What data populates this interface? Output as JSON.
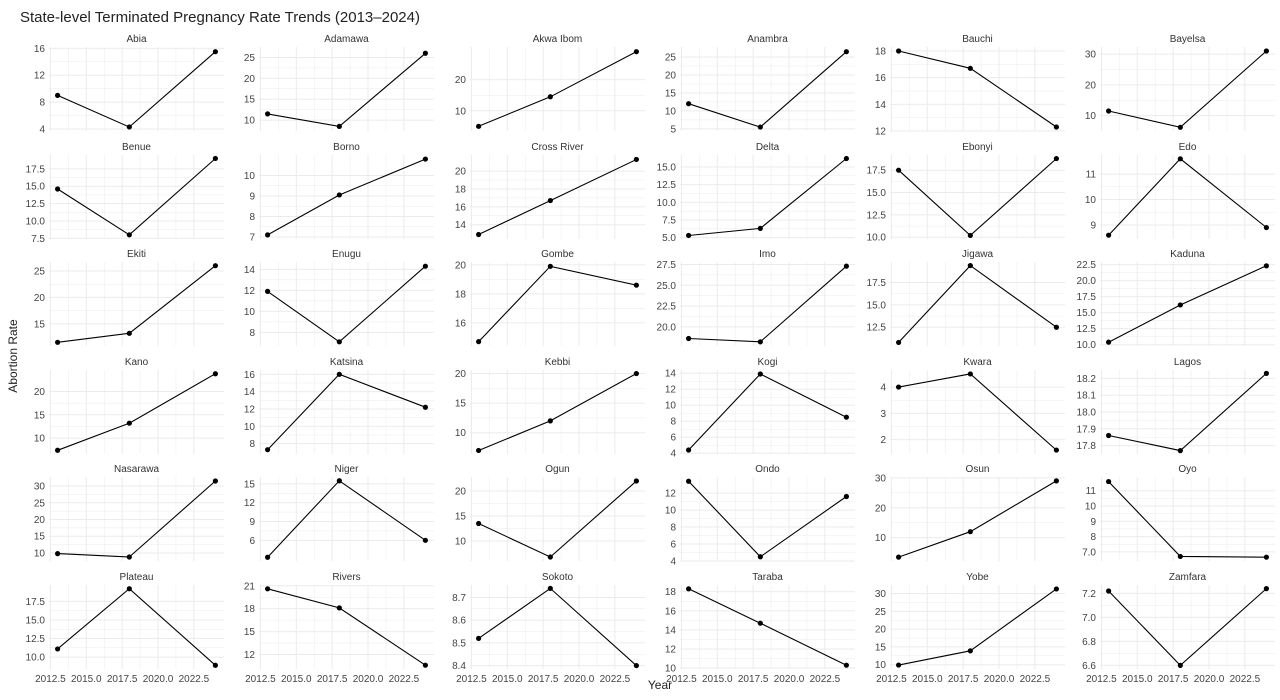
{
  "figure": {
    "title": "State-level Terminated Pregnancy Rate Trends (2013–2024)",
    "xlabel": "Year",
    "ylabel": "Abortion Rate",
    "background": "#ffffff",
    "grid_color": "#ebebeb",
    "line_color": "#000000",
    "point_color": "#000000"
  },
  "chart_data": {
    "type": "line",
    "layout": "facet_wrap",
    "grid": true,
    "x": [
      2013,
      2018,
      2024
    ],
    "xlim": [
      2012.4,
      2024.6
    ],
    "x_ticks": [
      2012.5,
      2015.0,
      2017.5,
      2020.0,
      2022.5
    ],
    "x_tick_labels": [
      "2012.5",
      "2015.0",
      "2017.5",
      "2020.0",
      "2022.5"
    ],
    "panels": [
      {
        "name": "Abia",
        "values": [
          9.0,
          4.3,
          15.5
        ],
        "ylim": [
          3.7,
          16.2
        ],
        "yticks": [
          4,
          8,
          12,
          16
        ],
        "ytick_labels": [
          "4",
          "8",
          "12",
          "16"
        ]
      },
      {
        "name": "Adamawa",
        "values": [
          11.5,
          8.5,
          26.0
        ],
        "ylim": [
          7.4,
          27.5
        ],
        "yticks": [
          10,
          15,
          20,
          25
        ],
        "ytick_labels": [
          "10",
          "15",
          "20",
          "25"
        ]
      },
      {
        "name": "Akwa Ibom",
        "values": [
          5.0,
          14.5,
          29.0
        ],
        "ylim": [
          3.5,
          30.5
        ],
        "yticks": [
          10,
          20
        ],
        "ytick_labels": [
          "10",
          "20"
        ]
      },
      {
        "name": "Anambra",
        "values": [
          12.0,
          5.5,
          26.5
        ],
        "ylim": [
          4.4,
          27.8
        ],
        "yticks": [
          5,
          10,
          15,
          20,
          25
        ],
        "ytick_labels": [
          "5",
          "10",
          "15",
          "20",
          "25"
        ]
      },
      {
        "name": "Bauchi",
        "values": [
          18.0,
          16.7,
          12.3
        ],
        "ylim": [
          12.0,
          18.3
        ],
        "yticks": [
          12,
          14,
          16,
          18
        ],
        "ytick_labels": [
          "12",
          "14",
          "16",
          "18"
        ]
      },
      {
        "name": "Bayelsa",
        "values": [
          11.5,
          6.2,
          31.0
        ],
        "ylim": [
          5.0,
          32.3
        ],
        "yticks": [
          10,
          20,
          30
        ],
        "ytick_labels": [
          "10",
          "20",
          "30"
        ]
      },
      {
        "name": "Benue",
        "values": [
          14.6,
          8.0,
          19.0
        ],
        "ylim": [
          7.4,
          19.5
        ],
        "yticks": [
          7.5,
          10.0,
          12.5,
          15.0,
          17.5
        ],
        "ytick_labels": [
          "7.5",
          "10.0",
          "12.5",
          "15.0",
          "17.5"
        ]
      },
      {
        "name": "Borno",
        "values": [
          7.1,
          9.05,
          10.8
        ],
        "ylim": [
          6.9,
          11.0
        ],
        "yticks": [
          7,
          8,
          9,
          10
        ],
        "ytick_labels": [
          "7",
          "8",
          "9",
          "10"
        ]
      },
      {
        "name": "Cross River",
        "values": [
          12.9,
          16.7,
          21.3
        ],
        "ylim": [
          12.4,
          21.8
        ],
        "yticks": [
          14,
          16,
          18,
          20
        ],
        "ytick_labels": [
          "14",
          "16",
          "18",
          "20"
        ]
      },
      {
        "name": "Delta",
        "values": [
          5.3,
          6.3,
          16.2
        ],
        "ylim": [
          4.8,
          16.7
        ],
        "yticks": [
          5.0,
          7.5,
          10.0,
          12.5,
          15.0
        ],
        "ytick_labels": [
          "5.0",
          "7.5",
          "10.0",
          "12.5",
          "15.0"
        ]
      },
      {
        "name": "Ebonyi",
        "values": [
          17.5,
          10.2,
          18.8
        ],
        "ylim": [
          9.8,
          19.2
        ],
        "yticks": [
          10.0,
          12.5,
          15.0,
          17.5
        ],
        "ytick_labels": [
          "10.0",
          "12.5",
          "15.0",
          "17.5"
        ]
      },
      {
        "name": "Edo",
        "values": [
          8.6,
          11.6,
          8.9
        ],
        "ylim": [
          8.45,
          11.75
        ],
        "yticks": [
          9,
          10,
          11
        ],
        "ytick_labels": [
          "9",
          "10",
          "11"
        ]
      },
      {
        "name": "Ekiti",
        "values": [
          11.5,
          13.2,
          26.0
        ],
        "ylim": [
          10.8,
          26.7
        ],
        "yticks": [
          15,
          20,
          25
        ],
        "ytick_labels": [
          "15",
          "20",
          "25"
        ]
      },
      {
        "name": "Enugu",
        "values": [
          11.9,
          7.1,
          14.3
        ],
        "ylim": [
          6.7,
          14.7
        ],
        "yticks": [
          8,
          10,
          12,
          14
        ],
        "ytick_labels": [
          "8",
          "10",
          "12",
          "14"
        ]
      },
      {
        "name": "Gombe",
        "values": [
          14.7,
          19.9,
          18.6
        ],
        "ylim": [
          14.4,
          20.2
        ],
        "yticks": [
          16,
          18,
          20
        ],
        "ytick_labels": [
          "16",
          "18",
          "20"
        ]
      },
      {
        "name": "Imo",
        "values": [
          18.6,
          18.2,
          27.3
        ],
        "ylim": [
          17.7,
          27.8
        ],
        "yticks": [
          20.0,
          22.5,
          25.0,
          27.5
        ],
        "ytick_labels": [
          "20.0",
          "22.5",
          "25.0",
          "27.5"
        ]
      },
      {
        "name": "Jigawa",
        "values": [
          10.8,
          19.4,
          12.5
        ],
        "ylim": [
          10.4,
          19.8
        ],
        "yticks": [
          12.5,
          15.0,
          17.5
        ],
        "ytick_labels": [
          "12.5",
          "15.0",
          "17.5"
        ]
      },
      {
        "name": "Kaduna",
        "values": [
          10.4,
          16.2,
          22.3
        ],
        "ylim": [
          9.8,
          22.9
        ],
        "yticks": [
          10.0,
          12.5,
          15.0,
          17.5,
          20.0,
          22.5
        ],
        "ytick_labels": [
          "10.0",
          "12.5",
          "15.0",
          "17.5",
          "20.0",
          "22.5"
        ]
      },
      {
        "name": "Kano",
        "values": [
          7.4,
          13.2,
          23.8
        ],
        "ylim": [
          6.6,
          24.6
        ],
        "yticks": [
          10,
          15,
          20
        ],
        "ytick_labels": [
          "10",
          "15",
          "20"
        ]
      },
      {
        "name": "Katsina",
        "values": [
          7.3,
          16.0,
          12.2
        ],
        "ylim": [
          6.8,
          16.5
        ],
        "yticks": [
          8,
          10,
          12,
          14,
          16
        ],
        "ytick_labels": [
          "8",
          "10",
          "12",
          "14",
          "16"
        ]
      },
      {
        "name": "Kebbi",
        "values": [
          7.0,
          12.0,
          20.0
        ],
        "ylim": [
          6.4,
          20.6
        ],
        "yticks": [
          10,
          15,
          20
        ],
        "ytick_labels": [
          "10",
          "15",
          "20"
        ]
      },
      {
        "name": "Kogi",
        "values": [
          4.4,
          13.9,
          8.5
        ],
        "ylim": [
          3.9,
          14.4
        ],
        "yticks": [
          4,
          6,
          8,
          10,
          12,
          14
        ],
        "ytick_labels": [
          "4",
          "6",
          "8",
          "10",
          "12",
          "14"
        ]
      },
      {
        "name": "Kwara",
        "values": [
          4.0,
          4.5,
          1.6
        ],
        "ylim": [
          1.45,
          4.65
        ],
        "yticks": [
          2,
          3,
          4
        ],
        "ytick_labels": [
          "2",
          "3",
          "4"
        ]
      },
      {
        "name": "Lagos",
        "values": [
          17.86,
          17.77,
          18.23
        ],
        "ylim": [
          17.75,
          18.25
        ],
        "yticks": [
          17.8,
          17.9,
          18.0,
          18.1,
          18.2
        ],
        "ytick_labels": [
          "17.8",
          "17.9",
          "18.0",
          "18.1",
          "18.2"
        ]
      },
      {
        "name": "Nasarawa",
        "values": [
          9.8,
          8.8,
          31.5
        ],
        "ylim": [
          7.6,
          32.7
        ],
        "yticks": [
          10,
          15,
          20,
          25,
          30
        ],
        "ytick_labels": [
          "10",
          "15",
          "20",
          "25",
          "30"
        ]
      },
      {
        "name": "Niger",
        "values": [
          3.3,
          15.5,
          6.0
        ],
        "ylim": [
          2.7,
          16.1
        ],
        "yticks": [
          6,
          9,
          12,
          15
        ],
        "ytick_labels": [
          "6",
          "9",
          "12",
          "15"
        ]
      },
      {
        "name": "Ogun",
        "values": [
          13.5,
          6.8,
          22.0
        ],
        "ylim": [
          6.0,
          22.8
        ],
        "yticks": [
          10,
          15,
          20
        ],
        "ytick_labels": [
          "10",
          "15",
          "20"
        ]
      },
      {
        "name": "Ondo",
        "values": [
          13.4,
          4.5,
          11.6
        ],
        "ylim": [
          4.0,
          13.9
        ],
        "yticks": [
          4,
          6,
          8,
          10,
          12
        ],
        "ytick_labels": [
          "4",
          "6",
          "8",
          "10",
          "12"
        ]
      },
      {
        "name": "Osun",
        "values": [
          3.5,
          12.0,
          29.0
        ],
        "ylim": [
          2.2,
          30.3
        ],
        "yticks": [
          10,
          20,
          30
        ],
        "ytick_labels": [
          "10",
          "20",
          "30"
        ]
      },
      {
        "name": "Oyo",
        "values": [
          11.6,
          6.7,
          6.65
        ],
        "ylim": [
          6.4,
          11.9
        ],
        "yticks": [
          7,
          8,
          9,
          10,
          11
        ],
        "ytick_labels": [
          "7.0",
          "8",
          "9",
          "10",
          "11"
        ]
      },
      {
        "name": "Plateau",
        "values": [
          11.1,
          19.2,
          8.9
        ],
        "ylim": [
          8.4,
          19.7
        ],
        "yticks": [
          10.0,
          12.5,
          15.0,
          17.5
        ],
        "ytick_labels": [
          "10.0",
          "12.5",
          "15.0",
          "17.5"
        ]
      },
      {
        "name": "Rivers",
        "values": [
          20.6,
          18.1,
          10.6
        ],
        "ylim": [
          10.1,
          21.1
        ],
        "yticks": [
          12,
          15,
          18,
          21
        ],
        "ytick_labels": [
          "12",
          "15",
          "18",
          "21"
        ]
      },
      {
        "name": "Sokoto",
        "values": [
          8.52,
          8.74,
          8.4
        ],
        "ylim": [
          8.385,
          8.755
        ],
        "yticks": [
          8.4,
          8.5,
          8.6,
          8.7
        ],
        "ytick_labels": [
          "8.4",
          "8.5",
          "8.6",
          "8.7"
        ]
      },
      {
        "name": "Taraba",
        "values": [
          18.3,
          14.7,
          10.3
        ],
        "ylim": [
          9.9,
          18.7
        ],
        "yticks": [
          10,
          12,
          14,
          16,
          18
        ],
        "ytick_labels": [
          "10",
          "12",
          "14",
          "16",
          "18"
        ]
      },
      {
        "name": "Yobe",
        "values": [
          9.9,
          13.9,
          31.3
        ],
        "ylim": [
          8.8,
          32.4
        ],
        "yticks": [
          10,
          15,
          20,
          25,
          30
        ],
        "ytick_labels": [
          "10",
          "15",
          "20",
          "25",
          "30"
        ]
      },
      {
        "name": "Zamfara",
        "values": [
          7.22,
          6.6,
          7.24
        ],
        "ylim": [
          6.57,
          7.27
        ],
        "yticks": [
          6.6,
          6.8,
          7.0,
          7.2
        ],
        "ytick_labels": [
          "6.6",
          "6.8",
          "7.0",
          "7.2"
        ]
      }
    ]
  }
}
